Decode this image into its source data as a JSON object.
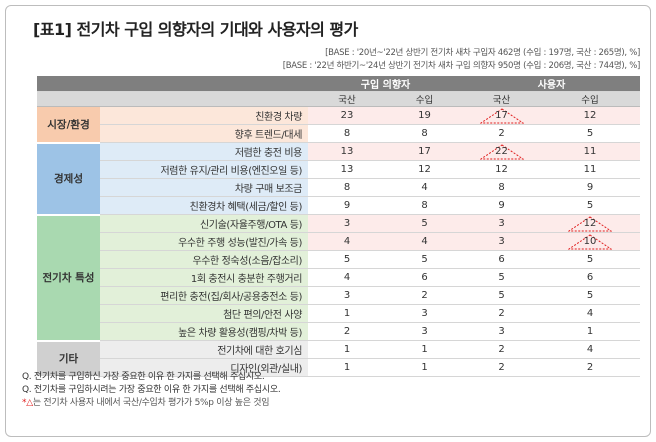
{
  "title": "[표1] 전기차 구입 의향자의 기대와 사용자의 평가",
  "base": [
    "[BASE : '20년~'22년 상반기 전기차 새차 구입자 462명 (수입 : 197명, 국산 : 265명), %]",
    "[BASE : '22년 하반기~'24년 상반기 전기차 새차 구입 의향자 950명 (수입 : 206명, 국산 : 744명), %]"
  ],
  "table": {
    "group_headers": [
      "구입 의향자",
      "사용자"
    ],
    "sub_headers": [
      "국산",
      "수입",
      "국산",
      "수입"
    ],
    "sections": [
      {
        "name": "시장/환경",
        "rows": [
          {
            "item": "친환경 차량",
            "values": [
              23,
              19,
              17,
              12
            ],
            "triangle": 2
          },
          {
            "item": "향후 트렌드/대세",
            "values": [
              8,
              8,
              2,
              5
            ]
          }
        ]
      },
      {
        "name": "경제성",
        "rows": [
          {
            "item": "저렴한 충전 비용",
            "values": [
              13,
              17,
              22,
              11
            ],
            "triangle": 2
          },
          {
            "item": "저렴한 유지/관리 비용(엔진오일 등)",
            "values": [
              13,
              12,
              12,
              11
            ]
          },
          {
            "item": "차량 구매 보조금",
            "values": [
              8,
              4,
              8,
              9
            ]
          },
          {
            "item": "친환경차 혜택(세금/할인 등)",
            "values": [
              9,
              8,
              9,
              5
            ]
          }
        ]
      },
      {
        "name": "전기차 특성",
        "rows": [
          {
            "item": "신기술(자율주행/OTA 등)",
            "values": [
              3,
              5,
              3,
              12
            ],
            "triangle": 3
          },
          {
            "item": "우수한 주행 성능(발진/가속 등)",
            "values": [
              4,
              4,
              3,
              10
            ],
            "triangle": 3
          },
          {
            "item": "우수한 정숙성(소음/잡소리)",
            "values": [
              5,
              5,
              6,
              5
            ]
          },
          {
            "item": "1회 충전시 충분한 주행거리",
            "values": [
              4,
              6,
              5,
              6
            ]
          },
          {
            "item": "편리한 충전(집/회사/공용충전소 등)",
            "values": [
              3,
              2,
              5,
              5
            ]
          },
          {
            "item": "첨단 편의/안전 사양",
            "values": [
              1,
              3,
              2,
              4
            ]
          },
          {
            "item": "높은 차량 활용성(캠핑/차박 등)",
            "values": [
              2,
              3,
              3,
              1
            ]
          }
        ]
      },
      {
        "name": "기타",
        "rows": [
          {
            "item": "전기차에 대한 호기심",
            "values": [
              1,
              1,
              2,
              4
            ]
          },
          {
            "item": "디자인(외관/실내)",
            "values": [
              1,
              1,
              2,
              2
            ]
          }
        ]
      }
    ]
  },
  "notes": [
    "Q. 전기차를 구입하신 가장 중요한 이유 한 가지를 선택해 주십시오.",
    "Q. 전기차를 구입하시려는 가장 중요한 이유 한 가지를 선택해 주십시오."
  ],
  "footnote": [
    "*",
    "△",
    "는 전기차 사용자 내에서 국산/수입차 평가가 5%p 이상 높은 것임"
  ]
}
